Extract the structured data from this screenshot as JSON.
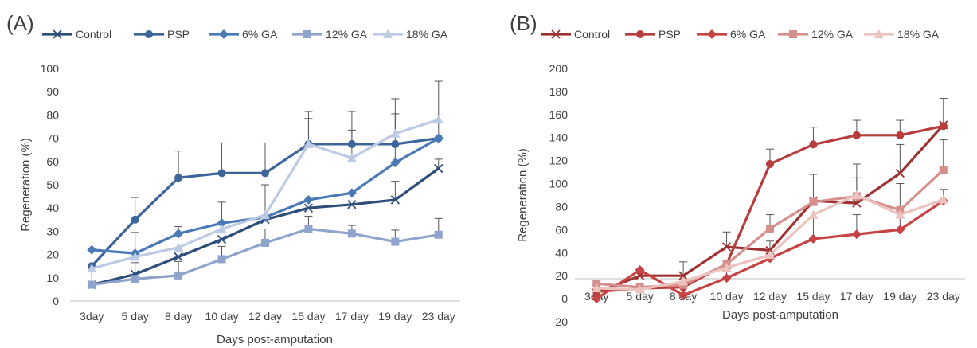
{
  "chart_data": [
    {
      "panel_label": "(A)",
      "type": "line",
      "categories": [
        "3day",
        "5 day",
        "8 day",
        "10 day",
        "12 day",
        "15 day",
        "17 day",
        "19 day",
        "23 day"
      ],
      "xlabel": "Days post-amputation",
      "ylabel": "Regeneration (%)",
      "ylim": [
        0,
        100
      ],
      "yticks": [
        0,
        10,
        20,
        30,
        40,
        50,
        60,
        70,
        80,
        90,
        100
      ],
      "legend_position": "top",
      "grid": false,
      "series": [
        {
          "name": "Control",
          "marker": "x",
          "color": "#2e4e7a",
          "values": [
            7,
            11.5,
            19,
            26.5,
            35,
            40,
            41.5,
            43.5,
            57
          ],
          "errors": [
            7,
            0,
            0,
            0,
            0,
            0,
            0,
            8,
            4
          ]
        },
        {
          "name": "PSP",
          "marker": "circle",
          "color": "#3d659c",
          "values": [
            15,
            35,
            53,
            55,
            55,
            67.5,
            67.5,
            67.5,
            70
          ],
          "errors": [
            0,
            9.5,
            11.5,
            13,
            13,
            14,
            14,
            13,
            10
          ]
        },
        {
          "name": "6% GA",
          "marker": "diamond",
          "color": "#4a7ab5",
          "values": [
            22,
            20.5,
            29,
            33.5,
            36,
            43.5,
            46.5,
            59.5,
            70
          ],
          "errors": [
            0,
            9,
            3,
            9,
            0,
            0,
            0,
            8,
            0
          ]
        },
        {
          "name": "12% GA",
          "marker": "square",
          "color": "#8ea4cc",
          "values": [
            7,
            9.5,
            11,
            18,
            25,
            31,
            29,
            25.5,
            28.5
          ],
          "errors": [
            0,
            7,
            6,
            5.5,
            6,
            5.5,
            3.5,
            5,
            7
          ]
        },
        {
          "name": "18% GA",
          "marker": "triangle",
          "color": "#bccbe3",
          "values": [
            14,
            19,
            23,
            31,
            37,
            67.5,
            61.5,
            72,
            78
          ],
          "errors": [
            0,
            0,
            0,
            0,
            13,
            11,
            12,
            15,
            16.5
          ]
        }
      ]
    },
    {
      "panel_label": "(B)",
      "type": "line",
      "categories": [
        "3day",
        "5 day",
        "8 day",
        "10 day",
        "12 day",
        "15 day",
        "17 day",
        "19 day",
        "23 day"
      ],
      "xlabel": "Days post-amputation",
      "ylabel": "Regeneration (%)",
      "ylim": [
        -20,
        200
      ],
      "yticks": [
        -20,
        0,
        20,
        40,
        60,
        80,
        100,
        120,
        140,
        160,
        180,
        200
      ],
      "legend_position": "top",
      "grid": false,
      "series": [
        {
          "name": "Control",
          "marker": "x",
          "color": "#9e3232",
          "values": [
            5,
            20,
            20,
            45,
            42,
            85,
            83,
            109,
            151
          ],
          "errors": [
            0,
            0,
            0,
            13,
            0,
            23,
            22,
            25,
            23
          ]
        },
        {
          "name": "PSP",
          "marker": "circle",
          "color": "#b73c3c",
          "values": [
            6,
            9,
            10,
            30,
            117,
            134,
            142,
            142,
            150
          ],
          "errors": [
            0,
            0,
            0,
            0,
            13,
            15,
            13,
            13,
            0
          ]
        },
        {
          "name": "6% GA",
          "marker": "diamond",
          "color": "#c64444",
          "values": [
            0,
            25,
            3,
            18,
            35,
            52,
            56,
            60,
            85
          ],
          "errors": [
            0,
            0,
            0,
            8,
            15,
            19,
            17,
            15,
            10
          ]
        },
        {
          "name": "12% GA",
          "marker": "square",
          "color": "#d6908c",
          "values": [
            13,
            10,
            12,
            30,
            61,
            84,
            89,
            77,
            112
          ],
          "errors": [
            0,
            0,
            20,
            0,
            12,
            0,
            28,
            23,
            26
          ]
        },
        {
          "name": "18% GA",
          "marker": "triangle",
          "color": "#ebc3bf",
          "values": [
            9,
            8,
            15,
            27,
            38,
            73,
            90,
            73,
            86
          ],
          "errors": [
            0,
            0,
            0,
            0,
            0,
            0,
            0,
            0,
            0
          ]
        }
      ]
    }
  ]
}
